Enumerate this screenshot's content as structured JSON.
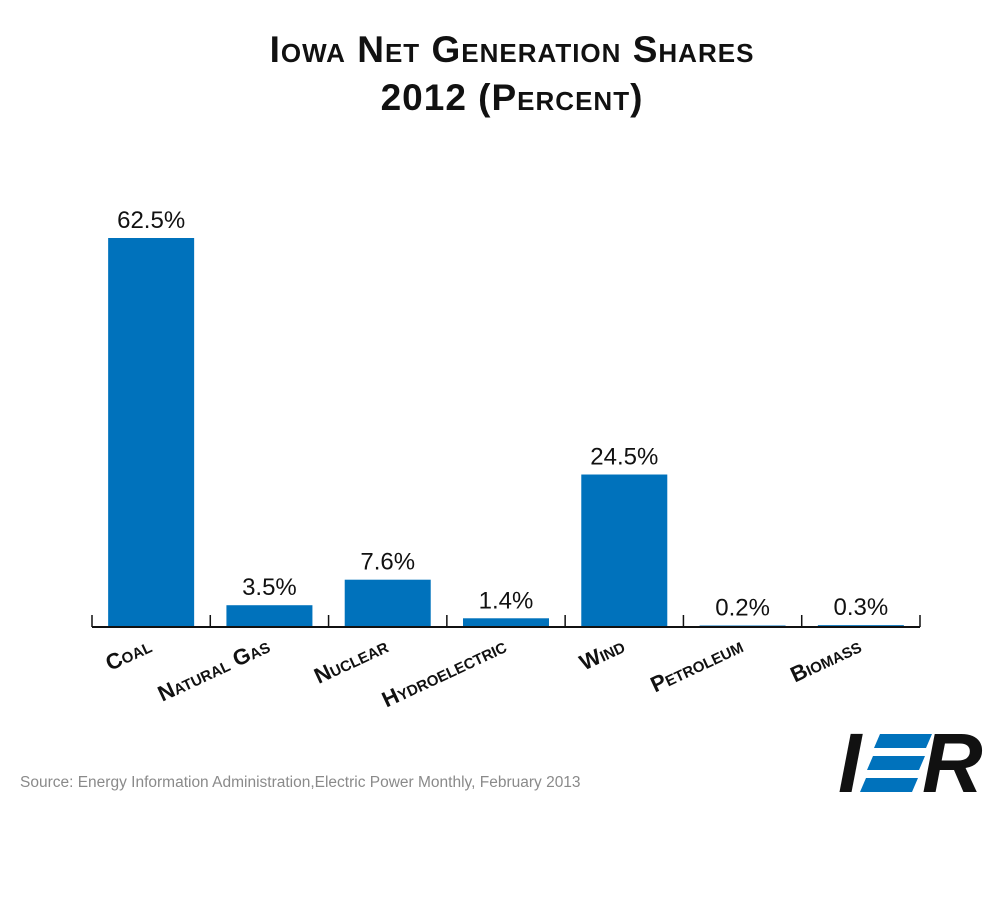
{
  "chart_data": {
    "type": "bar",
    "title": "Iowa Net Generation Shares",
    "subtitle": "2012 (Percent)",
    "categories": [
      "Coal",
      "Natural Gas",
      "Nuclear",
      "Hydroelectric",
      "Wind",
      "Petroleum",
      "Biomass"
    ],
    "values": [
      62.5,
      3.5,
      7.6,
      1.4,
      24.5,
      0.2,
      0.3
    ],
    "value_labels": [
      "62.5%",
      "3.5%",
      "7.6%",
      "1.4%",
      "24.5%",
      "0.2%",
      "0.3%"
    ],
    "xlabel": "",
    "ylabel": "",
    "ylim": [
      0,
      62.5
    ],
    "grid": false,
    "legend": "none",
    "bar_color": "#0072bc"
  },
  "source": "Source: Energy Information Administration,Electric Power Monthly, February 2013",
  "logo": {
    "text": "IER",
    "accent_color": "#0072bc"
  }
}
